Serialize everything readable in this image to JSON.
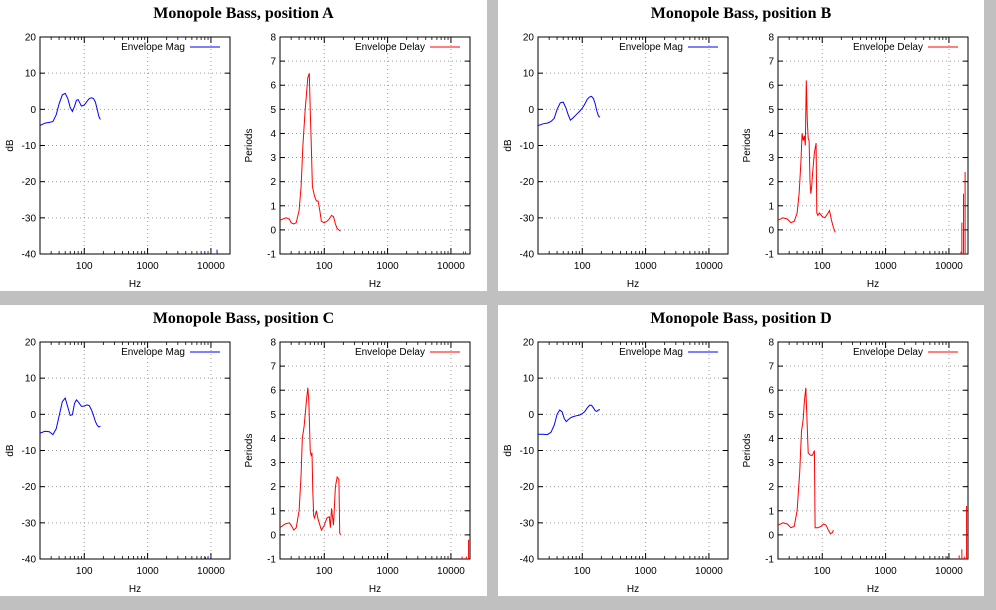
{
  "colors": {
    "background": "#c0c0c0",
    "panel": "#ffffff",
    "mag_line": "#0000ff",
    "delay_line": "#ff0000",
    "grid": "#a0a0a0"
  },
  "panels": [
    {
      "title": "Monopole Bass, position A",
      "mag": {
        "legend": "Envelope Mag",
        "ylabel": "dB",
        "xlabel": "Hz",
        "points": [
          [
            20,
            -4.5
          ],
          [
            24,
            -3.8
          ],
          [
            28,
            -3.6
          ],
          [
            32,
            -3.4
          ],
          [
            36,
            -1.5
          ],
          [
            40,
            1.5
          ],
          [
            45,
            4
          ],
          [
            50,
            4.4
          ],
          [
            55,
            3
          ],
          [
            60,
            0.5
          ],
          [
            65,
            -0.6
          ],
          [
            70,
            0.8
          ],
          [
            75,
            2.5
          ],
          [
            80,
            2.7
          ],
          [
            85,
            1.8
          ],
          [
            90,
            0.9
          ],
          [
            100,
            1.2
          ],
          [
            110,
            2.2
          ],
          [
            120,
            3
          ],
          [
            130,
            3.2
          ],
          [
            140,
            3
          ],
          [
            150,
            2
          ],
          [
            160,
            0
          ],
          [
            170,
            -2
          ],
          [
            180,
            -2.8
          ]
        ],
        "extras": [
          [
            8000,
            -39.6
          ],
          [
            12500,
            -38.8
          ]
        ]
      },
      "delay": {
        "legend": "Envelope Delay",
        "ylabel": "Periods",
        "xlabel": "Hz",
        "points": [
          [
            20,
            0.4
          ],
          [
            25,
            0.5
          ],
          [
            28,
            0.45
          ],
          [
            30,
            0.3
          ],
          [
            33,
            0.25
          ],
          [
            36,
            0.3
          ],
          [
            40,
            0.8
          ],
          [
            43,
            1.8
          ],
          [
            46,
            3.5
          ],
          [
            50,
            5
          ],
          [
            55,
            6.3
          ],
          [
            58,
            6.5
          ],
          [
            60,
            5
          ],
          [
            62,
            3.8
          ],
          [
            65,
            1.8
          ],
          [
            70,
            1.4
          ],
          [
            75,
            1.2
          ],
          [
            80,
            1.2
          ],
          [
            85,
            0.8
          ],
          [
            90,
            0.35
          ],
          [
            100,
            0.3
          ],
          [
            110,
            0.35
          ],
          [
            120,
            0.45
          ],
          [
            130,
            0.6
          ],
          [
            140,
            0.55
          ],
          [
            150,
            0.25
          ],
          [
            160,
            0.05
          ],
          [
            170,
            0.0
          ],
          [
            180,
            -0.05
          ]
        ],
        "extras": [
          [
            15800,
            -0.9
          ],
          [
            17000,
            -0.9
          ]
        ]
      }
    },
    {
      "title": "Monopole Bass, position B",
      "mag": {
        "legend": "Envelope Mag",
        "ylabel": "dB",
        "xlabel": "Hz",
        "points": [
          [
            20,
            -4.5
          ],
          [
            24,
            -4
          ],
          [
            28,
            -3.8
          ],
          [
            32,
            -3.4
          ],
          [
            36,
            -2.5
          ],
          [
            40,
            0
          ],
          [
            45,
            1.8
          ],
          [
            50,
            2
          ],
          [
            55,
            0.5
          ],
          [
            60,
            -1.5
          ],
          [
            65,
            -3
          ],
          [
            70,
            -2.5
          ],
          [
            80,
            -1.5
          ],
          [
            90,
            -0.6
          ],
          [
            100,
            0.3
          ],
          [
            110,
            1.5
          ],
          [
            120,
            2.8
          ],
          [
            130,
            3.4
          ],
          [
            140,
            3.6
          ],
          [
            150,
            3
          ],
          [
            160,
            1.5
          ],
          [
            170,
            -0.5
          ],
          [
            180,
            -1.8
          ],
          [
            190,
            -2.2
          ]
        ],
        "extras": []
      },
      "delay": {
        "legend": "Envelope Delay",
        "ylabel": "Periods",
        "xlabel": "Hz",
        "points": [
          [
            20,
            0.4
          ],
          [
            24,
            0.5
          ],
          [
            28,
            0.45
          ],
          [
            32,
            0.3
          ],
          [
            36,
            0.35
          ],
          [
            40,
            0.7
          ],
          [
            43,
            1.5
          ],
          [
            46,
            2.8
          ],
          [
            48,
            4
          ],
          [
            50,
            3.7
          ],
          [
            52,
            3.9
          ],
          [
            54,
            3.5
          ],
          [
            56,
            6.2
          ],
          [
            58,
            4.5
          ],
          [
            60,
            3.8
          ],
          [
            62,
            3.7
          ],
          [
            64,
            2
          ],
          [
            66,
            1.5
          ],
          [
            68,
            1.8
          ],
          [
            70,
            2.3
          ],
          [
            75,
            3.2
          ],
          [
            80,
            3.6
          ],
          [
            82,
            0.7
          ],
          [
            85,
            0.6
          ],
          [
            90,
            0.7
          ],
          [
            100,
            0.55
          ],
          [
            110,
            0.5
          ],
          [
            120,
            0.65
          ],
          [
            130,
            0.8
          ],
          [
            140,
            0.4
          ],
          [
            150,
            0.1
          ],
          [
            160,
            -0.1
          ]
        ],
        "extras": [
          [
            15500,
            -0.9
          ],
          [
            16000,
            0.3
          ],
          [
            17000,
            1.5
          ],
          [
            18000,
            2.4
          ]
        ]
      }
    },
    {
      "title": "Monopole Bass, position C",
      "mag": {
        "legend": "Envelope Mag",
        "ylabel": "dB",
        "xlabel": "Hz",
        "points": [
          [
            20,
            -5.2
          ],
          [
            24,
            -4.7
          ],
          [
            28,
            -4.8
          ],
          [
            32,
            -5.6
          ],
          [
            36,
            -4
          ],
          [
            40,
            -0.5
          ],
          [
            45,
            3.5
          ],
          [
            50,
            4.5
          ],
          [
            55,
            2
          ],
          [
            60,
            -0.3
          ],
          [
            65,
            -0.1
          ],
          [
            70,
            3
          ],
          [
            75,
            4
          ],
          [
            80,
            3.5
          ],
          [
            90,
            2.2
          ],
          [
            100,
            2.3
          ],
          [
            110,
            2.6
          ],
          [
            120,
            2.4
          ],
          [
            130,
            1.2
          ],
          [
            140,
            -0.3
          ],
          [
            150,
            -2
          ],
          [
            160,
            -3
          ],
          [
            170,
            -3.5
          ],
          [
            180,
            -3.3
          ]
        ],
        "extras": [
          [
            8200,
            -39.5
          ],
          [
            9000,
            -39.6
          ]
        ]
      },
      "delay": {
        "legend": "Envelope Delay",
        "ylabel": "Periods",
        "xlabel": "Hz",
        "points": [
          [
            20,
            0.3
          ],
          [
            24,
            0.45
          ],
          [
            28,
            0.5
          ],
          [
            30,
            0.4
          ],
          [
            33,
            0.2
          ],
          [
            36,
            0.3
          ],
          [
            40,
            1
          ],
          [
            43,
            2.5
          ],
          [
            45,
            4
          ],
          [
            48,
            4.5
          ],
          [
            50,
            5
          ],
          [
            52,
            5.5
          ],
          [
            55,
            6.1
          ],
          [
            57,
            5.6
          ],
          [
            60,
            3.5
          ],
          [
            62,
            3.3
          ],
          [
            64,
            3.4
          ],
          [
            66,
            1.8
          ],
          [
            68,
            0.8
          ],
          [
            70,
            0.7
          ],
          [
            72,
            0.8
          ],
          [
            75,
            1
          ],
          [
            80,
            0.65
          ],
          [
            90,
            0.2
          ],
          [
            100,
            0.4
          ],
          [
            110,
            0.7
          ],
          [
            120,
            0.75
          ],
          [
            125,
            0.3
          ],
          [
            130,
            1.1
          ],
          [
            140,
            0.4
          ],
          [
            150,
            2
          ],
          [
            160,
            2.4
          ],
          [
            170,
            2.3
          ],
          [
            175,
            0.1
          ],
          [
            180,
            0
          ]
        ],
        "extras": [
          [
            15000,
            -0.9
          ],
          [
            17500,
            -0.9
          ],
          [
            19000,
            -0.2
          ]
        ]
      }
    },
    {
      "title": "Monopole Bass, position D",
      "mag": {
        "legend": "Envelope Mag",
        "ylabel": "dB",
        "xlabel": "Hz",
        "points": [
          [
            20,
            -5.5
          ],
          [
            24,
            -5.5
          ],
          [
            28,
            -5.6
          ],
          [
            32,
            -5
          ],
          [
            36,
            -3
          ],
          [
            40,
            0
          ],
          [
            44,
            1.2
          ],
          [
            48,
            0.7
          ],
          [
            52,
            -1.2
          ],
          [
            56,
            -2
          ],
          [
            60,
            -1.5
          ],
          [
            65,
            -1
          ],
          [
            70,
            -0.7
          ],
          [
            80,
            -0.4
          ],
          [
            90,
            -0.2
          ],
          [
            100,
            0.2
          ],
          [
            110,
            0.8
          ],
          [
            120,
            1.8
          ],
          [
            130,
            2.5
          ],
          [
            140,
            2.5
          ],
          [
            150,
            1.8
          ],
          [
            160,
            1
          ],
          [
            170,
            0.8
          ],
          [
            180,
            1.2
          ],
          [
            190,
            1.3
          ]
        ],
        "extras": []
      },
      "delay": {
        "legend": "Envelope Delay",
        "ylabel": "Periods",
        "xlabel": "Hz",
        "points": [
          [
            20,
            0.4
          ],
          [
            24,
            0.5
          ],
          [
            28,
            0.45
          ],
          [
            32,
            0.3
          ],
          [
            36,
            0.35
          ],
          [
            40,
            1
          ],
          [
            44,
            2.6
          ],
          [
            47,
            4.3
          ],
          [
            50,
            4.8
          ],
          [
            52,
            5.5
          ],
          [
            55,
            6.1
          ],
          [
            57,
            5
          ],
          [
            60,
            3.4
          ],
          [
            65,
            3.3
          ],
          [
            70,
            3.3
          ],
          [
            75,
            3.5
          ],
          [
            77,
            0.3
          ],
          [
            85,
            0.3
          ],
          [
            95,
            0.35
          ],
          [
            105,
            0.45
          ],
          [
            115,
            0.4
          ],
          [
            125,
            0.2
          ],
          [
            135,
            0.05
          ],
          [
            145,
            0.1
          ],
          [
            150,
            0.2
          ]
        ],
        "extras": [
          [
            9500,
            -0.9
          ],
          [
            14500,
            -0.85
          ],
          [
            16000,
            -0.6
          ],
          [
            17500,
            -0.9
          ],
          [
            19000,
            1.2
          ]
        ]
      }
    }
  ],
  "chart_data": [
    {
      "type": "line",
      "title": "Monopole Bass, position A"
    },
    {
      "type": "line",
      "title": "Monopole Bass, position B"
    },
    {
      "type": "line",
      "title": "Monopole Bass, position C"
    },
    {
      "type": "line",
      "title": "Monopole Bass, position D"
    }
  ],
  "axes": {
    "mag": {
      "ylim": [
        -40,
        20
      ],
      "yticks": [
        20,
        10,
        0,
        -10,
        -20,
        -30,
        -40
      ],
      "xlim": [
        20,
        20000
      ],
      "xticks": [
        100,
        1000,
        10000
      ]
    },
    "delay": {
      "ylim": [
        -1,
        8
      ],
      "yticks": [
        8,
        7,
        6,
        5,
        4,
        3,
        2,
        1,
        0,
        -1
      ],
      "xlim": [
        20,
        20000
      ],
      "xticks": [
        100,
        1000,
        10000
      ]
    }
  }
}
